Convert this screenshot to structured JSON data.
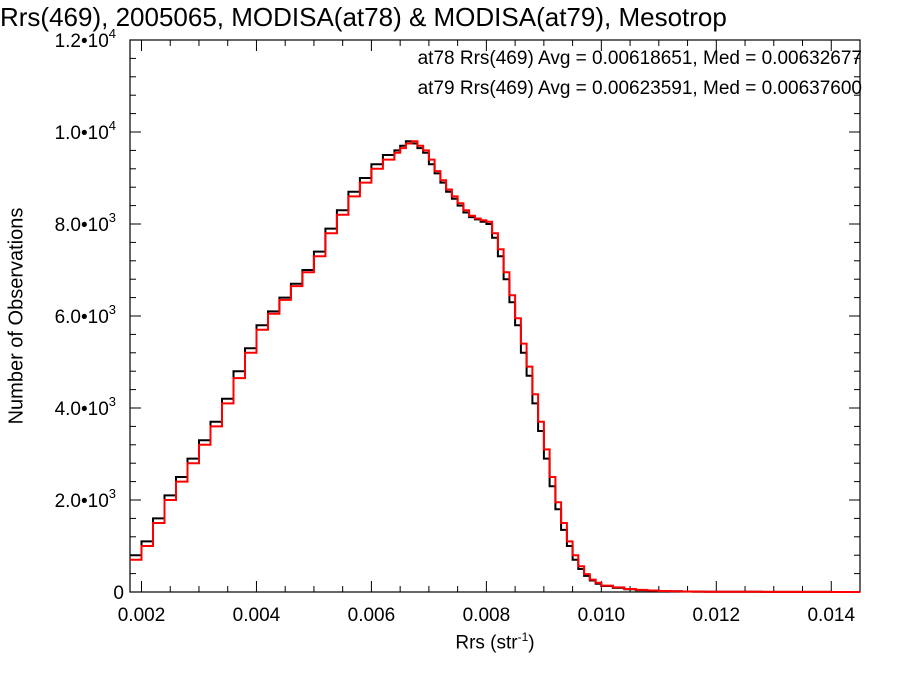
{
  "chart_data": {
    "type": "line",
    "title": "Rrs(469), 2005065, MODISA(at78) & MODISA(at79), Mesotrop",
    "xlabel": "Rrs (str",
    "xlabel_superscript": "-1",
    "xlabel_suffix": ")",
    "ylabel": "Number of Observations",
    "xlim": [
      0.0018,
      0.0145
    ],
    "ylim": [
      0,
      12000
    ],
    "x_ticks": [
      0.002,
      0.004,
      0.006,
      0.008,
      0.01,
      0.012,
      0.014
    ],
    "x_tick_labels": [
      "0.002",
      "0.004",
      "0.006",
      "0.008",
      "0.010",
      "0.012",
      "0.014"
    ],
    "y_ticks": [
      {
        "value": 0,
        "mantissa": "0",
        "exponent": ""
      },
      {
        "value": 2000,
        "mantissa": "2.0•10",
        "exponent": "3"
      },
      {
        "value": 4000,
        "mantissa": "4.0•10",
        "exponent": "3"
      },
      {
        "value": 6000,
        "mantissa": "6.0•10",
        "exponent": "3"
      },
      {
        "value": 8000,
        "mantissa": "8.0•10",
        "exponent": "3"
      },
      {
        "value": 10000,
        "mantissa": "1.0•10",
        "exponent": "4"
      },
      {
        "value": 12000,
        "mantissa": "1.2•10",
        "exponent": "4"
      }
    ],
    "legend_position": "top-right",
    "legend": [
      {
        "text": "at78 Rrs(469) Avg = 0.00618651, Med = 0.00632677",
        "color": "#000000"
      },
      {
        "text": "at79 Rrs(469) Avg = 0.00623591, Med = 0.00637600",
        "color": "#ff0000"
      }
    ],
    "series": [
      {
        "name": "at78",
        "color": "#000000",
        "step": true,
        "x": [
          0.0018,
          0.002,
          0.0022,
          0.0024,
          0.0026,
          0.0028,
          0.003,
          0.0032,
          0.0034,
          0.0036,
          0.0038,
          0.004,
          0.0042,
          0.0044,
          0.0046,
          0.0048,
          0.005,
          0.0052,
          0.0054,
          0.0056,
          0.0058,
          0.006,
          0.0062,
          0.0064,
          0.0065,
          0.0066,
          0.0067,
          0.0068,
          0.0069,
          0.007,
          0.0071,
          0.0072,
          0.0073,
          0.0074,
          0.0075,
          0.0076,
          0.0077,
          0.0078,
          0.0079,
          0.008,
          0.0081,
          0.0082,
          0.0083,
          0.0084,
          0.0085,
          0.0086,
          0.0087,
          0.0088,
          0.0089,
          0.009,
          0.0091,
          0.0092,
          0.0093,
          0.0094,
          0.0095,
          0.0096,
          0.0097,
          0.0098,
          0.0099,
          0.01,
          0.0102,
          0.0104,
          0.0106,
          0.0108,
          0.011,
          0.0112,
          0.0114,
          0.0116,
          0.0118,
          0.012,
          0.0124,
          0.0128,
          0.0132,
          0.0136,
          0.014,
          0.0145
        ],
        "values": [
          800,
          1100,
          1600,
          2100,
          2500,
          2900,
          3300,
          3700,
          4200,
          4800,
          5300,
          5800,
          6100,
          6400,
          6700,
          7000,
          7400,
          7900,
          8300,
          8700,
          9000,
          9300,
          9500,
          9600,
          9700,
          9800,
          9750,
          9650,
          9550,
          9300,
          9100,
          8900,
          8700,
          8550,
          8400,
          8250,
          8150,
          8100,
          8050,
          8000,
          7700,
          7300,
          6800,
          6300,
          5800,
          5200,
          4700,
          4100,
          3500,
          2900,
          2300,
          1800,
          1350,
          1000,
          700,
          500,
          350,
          250,
          180,
          130,
          90,
          60,
          40,
          30,
          20,
          15,
          10,
          8,
          6,
          5,
          4,
          3,
          2,
          2,
          1,
          1
        ]
      },
      {
        "name": "at79",
        "color": "#ff0000",
        "step": true,
        "x": [
          0.0018,
          0.002,
          0.0022,
          0.0024,
          0.0026,
          0.0028,
          0.003,
          0.0032,
          0.0034,
          0.0036,
          0.0038,
          0.004,
          0.0042,
          0.0044,
          0.0046,
          0.0048,
          0.005,
          0.0052,
          0.0054,
          0.0056,
          0.0058,
          0.006,
          0.0062,
          0.0064,
          0.0065,
          0.0066,
          0.0067,
          0.0068,
          0.0069,
          0.007,
          0.0071,
          0.0072,
          0.0073,
          0.0074,
          0.0075,
          0.0076,
          0.0077,
          0.0078,
          0.0079,
          0.008,
          0.0081,
          0.0082,
          0.0083,
          0.0084,
          0.0085,
          0.0086,
          0.0087,
          0.0088,
          0.0089,
          0.009,
          0.0091,
          0.0092,
          0.0093,
          0.0094,
          0.0095,
          0.0096,
          0.0097,
          0.0098,
          0.0099,
          0.01,
          0.0102,
          0.0104,
          0.0106,
          0.0108,
          0.011,
          0.0112,
          0.0114,
          0.0116,
          0.0118,
          0.012,
          0.0124,
          0.0128,
          0.0132,
          0.0136,
          0.014,
          0.0145
        ],
        "values": [
          700,
          1000,
          1500,
          2000,
          2400,
          2800,
          3200,
          3600,
          4100,
          4650,
          5200,
          5700,
          6050,
          6350,
          6650,
          6950,
          7300,
          7800,
          8200,
          8600,
          8900,
          9200,
          9400,
          9550,
          9650,
          9750,
          9800,
          9700,
          9600,
          9400,
          9150,
          8950,
          8750,
          8600,
          8450,
          8300,
          8180,
          8120,
          8080,
          8050,
          7800,
          7450,
          6950,
          6450,
          5950,
          5400,
          4900,
          4300,
          3700,
          3100,
          2500,
          1950,
          1500,
          1100,
          800,
          560,
          390,
          270,
          200,
          140,
          100,
          65,
          45,
          32,
          22,
          16,
          11,
          9,
          7,
          5,
          4,
          3,
          2,
          2,
          1,
          1
        ]
      }
    ]
  }
}
